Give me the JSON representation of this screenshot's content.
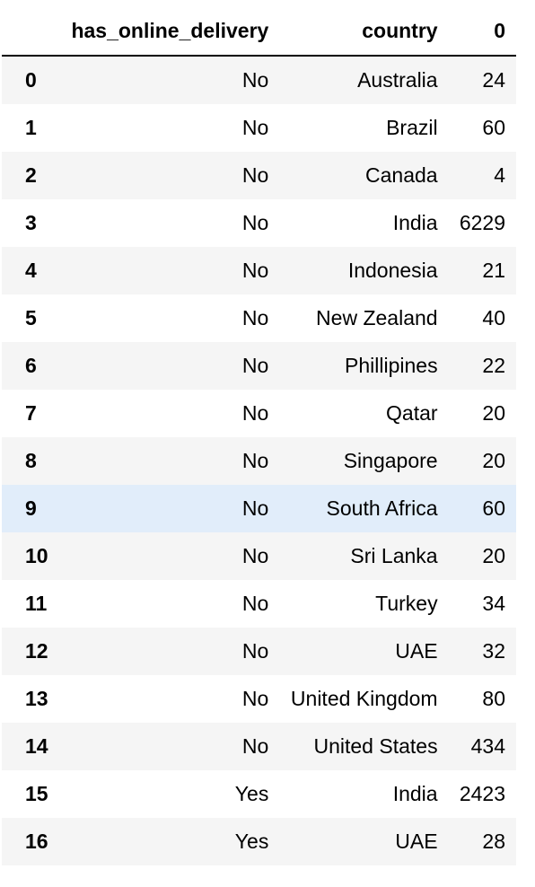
{
  "table": {
    "columns": [
      "",
      "has_online_delivery",
      "country",
      "0"
    ],
    "highlight_row": 9,
    "rows": [
      {
        "index": "0",
        "has_online_delivery": "No",
        "country": "Australia",
        "count": "24"
      },
      {
        "index": "1",
        "has_online_delivery": "No",
        "country": "Brazil",
        "count": "60"
      },
      {
        "index": "2",
        "has_online_delivery": "No",
        "country": "Canada",
        "count": "4"
      },
      {
        "index": "3",
        "has_online_delivery": "No",
        "country": "India",
        "count": "6229"
      },
      {
        "index": "4",
        "has_online_delivery": "No",
        "country": "Indonesia",
        "count": "21"
      },
      {
        "index": "5",
        "has_online_delivery": "No",
        "country": "New Zealand",
        "count": "40"
      },
      {
        "index": "6",
        "has_online_delivery": "No",
        "country": "Phillipines",
        "count": "22"
      },
      {
        "index": "7",
        "has_online_delivery": "No",
        "country": "Qatar",
        "count": "20"
      },
      {
        "index": "8",
        "has_online_delivery": "No",
        "country": "Singapore",
        "count": "20"
      },
      {
        "index": "9",
        "has_online_delivery": "No",
        "country": "South Africa",
        "count": "60"
      },
      {
        "index": "10",
        "has_online_delivery": "No",
        "country": "Sri Lanka",
        "count": "20"
      },
      {
        "index": "11",
        "has_online_delivery": "No",
        "country": "Turkey",
        "count": "34"
      },
      {
        "index": "12",
        "has_online_delivery": "No",
        "country": "UAE",
        "count": "32"
      },
      {
        "index": "13",
        "has_online_delivery": "No",
        "country": "United Kingdom",
        "count": "80"
      },
      {
        "index": "14",
        "has_online_delivery": "No",
        "country": "United States",
        "count": "434"
      },
      {
        "index": "15",
        "has_online_delivery": "Yes",
        "country": "India",
        "count": "2423"
      },
      {
        "index": "16",
        "has_online_delivery": "Yes",
        "country": "UAE",
        "count": "28"
      }
    ]
  },
  "colors": {
    "row_odd": "#f5f5f5",
    "row_even": "#ffffff",
    "row_hover": "#e1edfa",
    "header_rule": "#000000"
  }
}
